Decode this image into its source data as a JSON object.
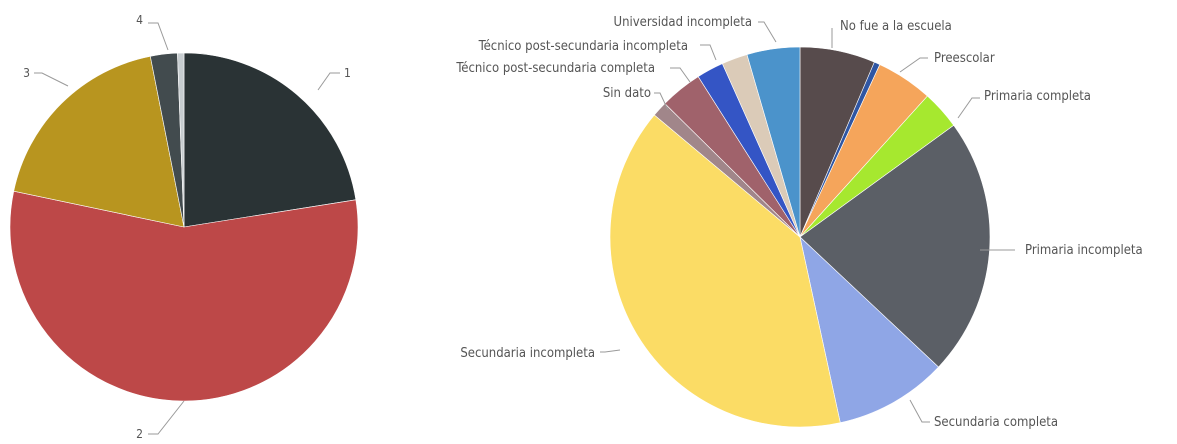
{
  "chart_data": [
    {
      "type": "pie",
      "slices": [
        {
          "label": "1",
          "value": 22.5,
          "color": "#2a3335"
        },
        {
          "label": "2",
          "value": 55.8,
          "color": "#bd4848"
        },
        {
          "label": "3",
          "value": 18.6,
          "color": "#b8951f"
        },
        {
          "label": "4",
          "value": 2.5,
          "color": "#424b4e"
        },
        {
          "label": "",
          "value": 0.6,
          "color": "#c7cdd0"
        }
      ],
      "legend": "none"
    },
    {
      "type": "pie",
      "slices": [
        {
          "label": "No fue a la escuela",
          "value": 6.4,
          "color": "#574b4c"
        },
        {
          "label": "",
          "value": 0.5,
          "color": "#2f56a3"
        },
        {
          "label": "Preescolar",
          "value": 4.8,
          "color": "#f5a55b"
        },
        {
          "label": "Primaria completa",
          "value": 3.3,
          "color": "#a6e82f"
        },
        {
          "label": "Primaria incompleta",
          "value": 22.0,
          "color": "#5b5f66"
        },
        {
          "label": "Secundaria completa",
          "value": 9.6,
          "color": "#8fa6e6"
        },
        {
          "label": "Secundaria incompleta",
          "value": 39.5,
          "color": "#fbdc65"
        },
        {
          "label": "Sin dato",
          "value": 1.3,
          "color": "#a1868a"
        },
        {
          "label": "Técnico post-secundaria completa",
          "value": 3.6,
          "color": "#a0626b"
        },
        {
          "label": "Técnico post-secundaria incompleta",
          "value": 2.3,
          "color": "#3455c5"
        },
        {
          "label": "",
          "value": 2.2,
          "color": "#dbcbb8"
        },
        {
          "label": "Universidad incompleta",
          "value": 4.5,
          "color": "#4b93cb"
        }
      ],
      "legend": "none"
    }
  ]
}
